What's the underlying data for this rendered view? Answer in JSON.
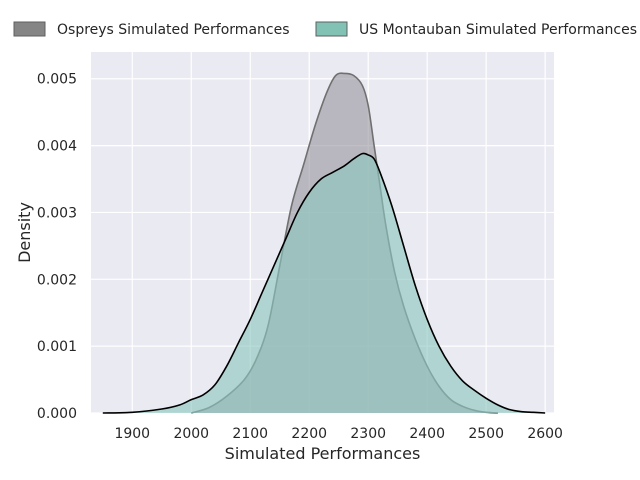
{
  "chart_data": {
    "type": "area",
    "subtype": "kde-density",
    "xlabel": "Simulated Performances",
    "ylabel": "Density",
    "xlim": [
      1830,
      2615
    ],
    "ylim": [
      0,
      0.0054
    ],
    "xticks": [
      1900,
      2000,
      2100,
      2200,
      2300,
      2400,
      2500,
      2600
    ],
    "xtick_labels": [
      "1900",
      "2000",
      "2100",
      "2200",
      "2300",
      "2400",
      "2500",
      "2600"
    ],
    "yticks": [
      0,
      0.001,
      0.002,
      0.003,
      0.004,
      0.005
    ],
    "ytick_labels": [
      "0.000",
      "0.001",
      "0.002",
      "0.003",
      "0.004",
      "0.005"
    ],
    "grid": true,
    "legend_position": "top, horizontal",
    "series": [
      {
        "name": "Ospreys Simulated Performances",
        "fill_color": "#9a979f",
        "line_color": "#707070",
        "legend_color": "#858585",
        "x": [
          2000,
          2030,
          2060,
          2090,
          2110,
          2130,
          2150,
          2170,
          2190,
          2210,
          2230,
          2245,
          2260,
          2275,
          2290,
          2300,
          2310,
          2320,
          2330,
          2345,
          2360,
          2380,
          2400,
          2420,
          2440,
          2460,
          2480,
          2500,
          2520
        ],
        "y": [
          0,
          8e-05,
          0.00025,
          0.0005,
          0.0008,
          0.0013,
          0.0022,
          0.0031,
          0.0037,
          0.0043,
          0.0048,
          0.00505,
          0.00508,
          0.00505,
          0.0049,
          0.0046,
          0.004,
          0.0034,
          0.0028,
          0.0021,
          0.0016,
          0.0011,
          0.0007,
          0.0004,
          0.0002,
          0.0001,
          4e-05,
          1e-05,
          0
        ]
      },
      {
        "name": "US Montauban Simulated Performances",
        "fill_color": "#8cc7be",
        "line_color": "#000000",
        "legend_color": "#82c2b5",
        "x": [
          1850,
          1900,
          1950,
          1980,
          2000,
          2020,
          2040,
          2060,
          2080,
          2100,
          2120,
          2140,
          2160,
          2180,
          2200,
          2220,
          2240,
          2260,
          2275,
          2290,
          2300,
          2310,
          2320,
          2340,
          2360,
          2380,
          2400,
          2420,
          2440,
          2460,
          2480,
          2500,
          2520,
          2540,
          2560,
          2580,
          2600
        ],
        "y": [
          0,
          1e-05,
          6e-05,
          0.00012,
          0.0002,
          0.00027,
          0.00042,
          0.0007,
          0.00105,
          0.0014,
          0.0018,
          0.0022,
          0.0026,
          0.003,
          0.0033,
          0.0035,
          0.0036,
          0.0037,
          0.0038,
          0.00388,
          0.00386,
          0.0038,
          0.0036,
          0.0031,
          0.0025,
          0.0019,
          0.0014,
          0.001,
          0.0007,
          0.00048,
          0.00034,
          0.00022,
          0.00012,
          5e-05,
          2e-05,
          1e-05,
          0
        ]
      }
    ]
  }
}
